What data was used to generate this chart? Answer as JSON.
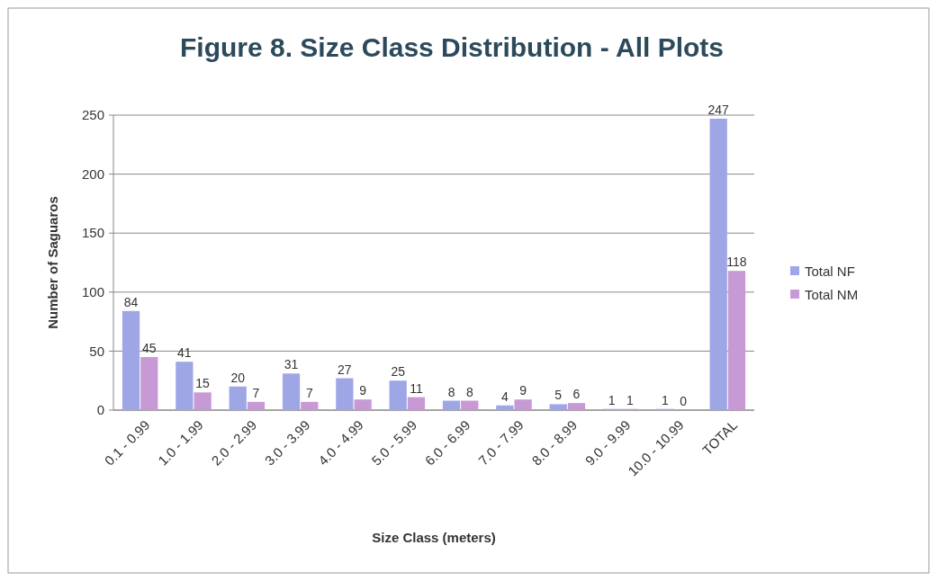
{
  "chart_data": {
    "type": "bar",
    "title": "Figure 8. Size Class Distribution - All Plots",
    "xlabel": "Size Class (meters)",
    "ylabel": "Number of Saguaros",
    "categories": [
      "0.1 - 0.99",
      "1.0 - 1.99",
      "2.0 - 2.99",
      "3.0 - 3.99",
      "4.0 - 4.99",
      "5.0 - 5.99",
      "6.0 - 6.99",
      "7.0 - 7.99",
      "8.0 - 8.99",
      "9.0 - 9.99",
      "10.0 - 10.99",
      "TOTAL"
    ],
    "series": [
      {
        "name": "Total NF",
        "color": "#9fa6e6",
        "values": [
          84,
          41,
          20,
          31,
          27,
          25,
          8,
          4,
          5,
          1,
          1,
          247
        ]
      },
      {
        "name": "Total NM",
        "color": "#c79ad6",
        "values": [
          45,
          15,
          7,
          7,
          9,
          11,
          8,
          9,
          6,
          1,
          0,
          118
        ]
      }
    ],
    "ylim": [
      0,
      250
    ],
    "yticks": [
      0,
      50,
      100,
      150,
      200,
      250
    ],
    "grid": "y",
    "legend": "right",
    "data_labels": true
  }
}
